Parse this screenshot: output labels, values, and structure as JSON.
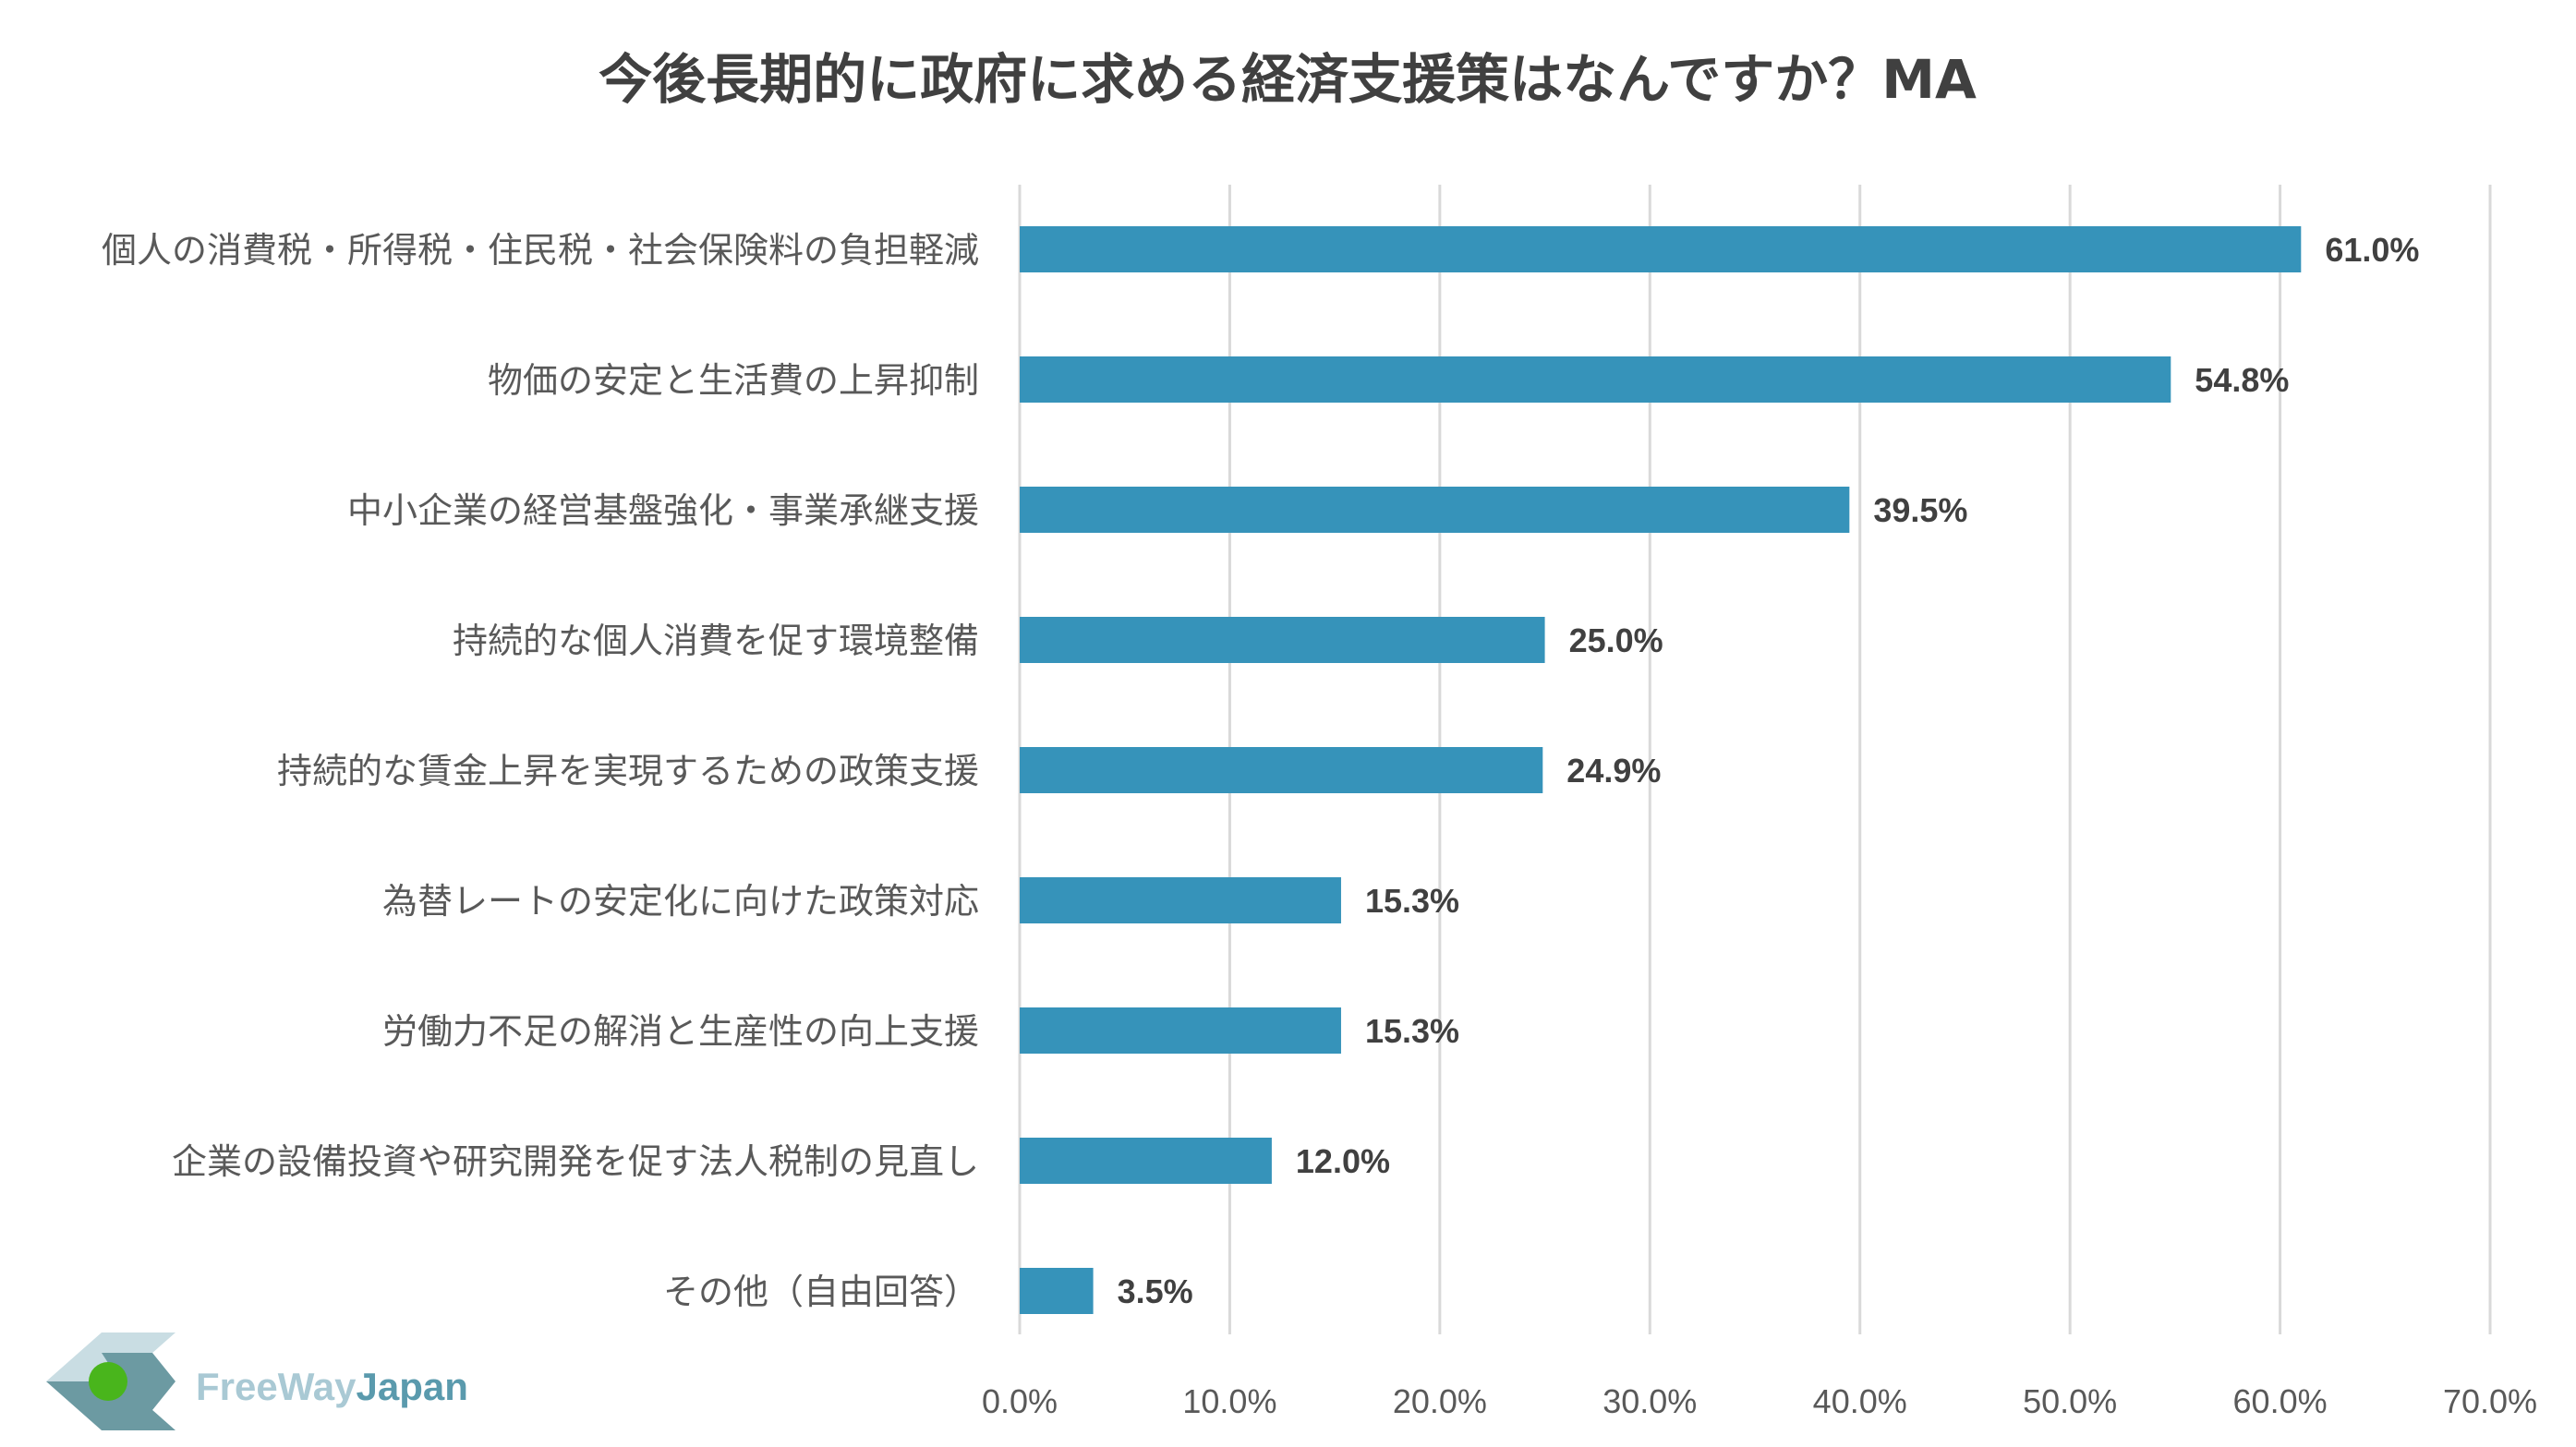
{
  "colors": {
    "bar": "#3693BA",
    "grid": "#D9D9D9",
    "title": "#404040",
    "label": "#595959",
    "logo_free": "#A9C9D4",
    "logo_japan": "#5A9AAD",
    "logo_dark": "#6C9AA2",
    "logo_light": "#C9DDE3",
    "logo_ball": "#49B51C"
  },
  "logo": {
    "icon": "freewayjapan-logo-icon",
    "text_free": "FreeWay",
    "text_japan": "Japan"
  },
  "chart_data": {
    "type": "bar",
    "orientation": "horizontal",
    "title": "今後長期的に政府に求める経済支援策はなんですか？MA",
    "categories": [
      "個人の消費税・所得税・住民税・社会保険料の負担軽減",
      "物価の安定と生活費の上昇抑制",
      "中小企業の経営基盤強化・事業承継支援",
      "持続的な個人消費を促す環境整備",
      "持続的な賃金上昇を実現するための政策支援",
      "為替レートの安定化に向けた政策対応",
      "労働力不足の解消と生産性の向上支援",
      "企業の設備投資や研究開発を促す法人税制の見直し",
      "その他（自由回答）"
    ],
    "values": [
      61.0,
      54.8,
      39.5,
      25.0,
      24.9,
      15.3,
      15.3,
      12.0,
      3.5
    ],
    "value_labels": [
      "61.0%",
      "54.8%",
      "39.5%",
      "25.0%",
      "24.9%",
      "15.3%",
      "15.3%",
      "12.0%",
      "3.5%"
    ],
    "xlim": [
      0,
      70
    ],
    "xticks": [
      0,
      10,
      20,
      30,
      40,
      50,
      60,
      70
    ],
    "xtick_labels": [
      "0.0%",
      "10.0%",
      "20.0%",
      "30.0%",
      "40.0%",
      "50.0%",
      "60.0%",
      "70.0%"
    ],
    "grid": "vertical",
    "legend": "none"
  }
}
